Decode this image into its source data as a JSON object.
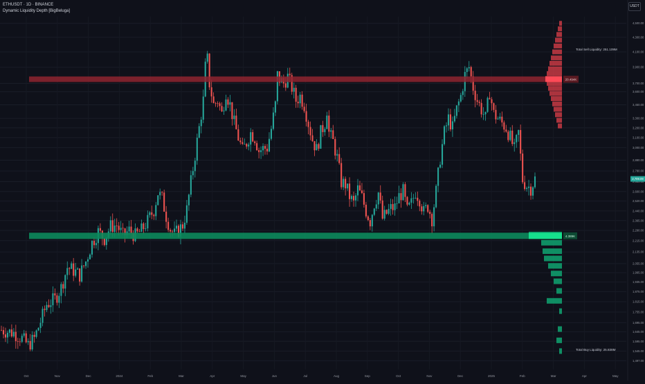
{
  "header": {
    "symbol_line": "ETHUSDT · 1D · BINANCE",
    "indicator_line": "Dynamic Liquidity Depth [BigBeluga]",
    "currency_button": "USDT"
  },
  "colors": {
    "background": "#0f111a",
    "candle_up": "#26a69a",
    "candle_down": "#ef5350",
    "sell_band": "#8e2530",
    "buy_band": "#0c8a5c",
    "sell_profile": "#c73a44",
    "buy_profile": "#0f9c6b",
    "last_price_badge": "#26a69a"
  },
  "chart_data": {
    "type": "candlestick",
    "x_ticks": [
      "Oct",
      "Nov",
      "Dec",
      "2024",
      "Feb",
      "Mar",
      "Apr",
      "May",
      "Jun",
      "Jul",
      "Aug",
      "Sep",
      "Oct",
      "Nov",
      "Dec",
      "2025",
      "Feb",
      "Mar",
      "Apr",
      "May"
    ],
    "y_ticks": [
      1497,
      1545,
      1595,
      1645,
      1695,
      1755,
      1815,
      1875,
      1935,
      1995,
      2055,
      2135,
      2215,
      2290,
      2365,
      2440,
      2520,
      2600,
      2685,
      2780,
      2880,
      3000,
      3100,
      3200,
      3300,
      3450,
      3600,
      3700,
      3900,
      4100,
      4300,
      4500
    ],
    "y_range": [
      1455,
      4600
    ],
    "y_scale": "log",
    "price_path_anchors": [
      [
        0,
        1655
      ],
      [
        6,
        1640
      ],
      [
        10,
        1610
      ],
      [
        13,
        1575
      ],
      [
        16,
        1610
      ],
      [
        18,
        1670
      ],
      [
        22,
        1800
      ],
      [
        26,
        1830
      ],
      [
        29,
        1900
      ],
      [
        32,
        2030
      ],
      [
        35,
        2010
      ],
      [
        38,
        1980
      ],
      [
        41,
        2070
      ],
      [
        44,
        2200
      ],
      [
        47,
        2280
      ],
      [
        50,
        2230
      ],
      [
        53,
        2320
      ],
      [
        56,
        2330
      ],
      [
        59,
        2250
      ],
      [
        62,
        2290
      ],
      [
        65,
        2250
      ],
      [
        68,
        2290
      ],
      [
        71,
        2360
      ],
      [
        74,
        2450
      ],
      [
        76,
        2590
      ],
      [
        78,
        2540
      ],
      [
        80,
        2400
      ],
      [
        82,
        2300
      ],
      [
        84,
        2260
      ],
      [
        86,
        2290
      ],
      [
        88,
        2330
      ],
      [
        90,
        2450
      ],
      [
        92,
        2680
      ],
      [
        94,
        2930
      ],
      [
        96,
        3200
      ],
      [
        98,
        3500
      ],
      [
        99,
        3900
      ],
      [
        100,
        4000
      ],
      [
        101,
        3700
      ],
      [
        103,
        3450
      ],
      [
        105,
        3500
      ],
      [
        107,
        3350
      ],
      [
        109,
        3600
      ],
      [
        111,
        3450
      ],
      [
        113,
        3250
      ],
      [
        115,
        3100
      ],
      [
        117,
        2970
      ],
      [
        119,
        3050
      ],
      [
        121,
        3150
      ],
      [
        123,
        3100
      ],
      [
        125,
        2970
      ],
      [
        127,
        2990
      ],
      [
        129,
        3000
      ],
      [
        131,
        3190
      ],
      [
        133,
        3450
      ],
      [
        134,
        3800
      ],
      [
        135,
        3750
      ],
      [
        137,
        3700
      ],
      [
        139,
        3780
      ],
      [
        141,
        3650
      ],
      [
        143,
        3500
      ],
      [
        145,
        3550
      ],
      [
        147,
        3450
      ],
      [
        149,
        3250
      ],
      [
        151,
        3080
      ],
      [
        153,
        2980
      ],
      [
        155,
        3150
      ],
      [
        157,
        3250
      ],
      [
        158,
        3400
      ],
      [
        159,
        3150
      ],
      [
        161,
        3060
      ],
      [
        163,
        2900
      ],
      [
        165,
        2680
      ],
      [
        167,
        2660
      ],
      [
        169,
        2560
      ],
      [
        171,
        2500
      ],
      [
        173,
        2620
      ],
      [
        175,
        2550
      ],
      [
        177,
        2440
      ],
      [
        179,
        2360
      ],
      [
        181,
        2500
      ],
      [
        183,
        2590
      ],
      [
        185,
        2380
      ],
      [
        187,
        2420
      ],
      [
        189,
        2460
      ],
      [
        191,
        2470
      ],
      [
        193,
        2560
      ],
      [
        195,
        2600
      ],
      [
        197,
        2440
      ],
      [
        199,
        2500
      ],
      [
        201,
        2600
      ],
      [
        203,
        2540
      ],
      [
        205,
        2430
      ],
      [
        207,
        2480
      ],
      [
        209,
        2380
      ],
      [
        211,
        2600
      ],
      [
        213,
        2900
      ],
      [
        215,
        3150
      ],
      [
        217,
        3300
      ],
      [
        219,
        3200
      ],
      [
        221,
        3400
      ],
      [
        223,
        3550
      ],
      [
        225,
        3800
      ],
      [
        227,
        3900
      ],
      [
        229,
        3650
      ],
      [
        231,
        3500
      ],
      [
        233,
        3400
      ],
      [
        235,
        3300
      ],
      [
        237,
        3600
      ],
      [
        239,
        3350
      ],
      [
        241,
        3300
      ],
      [
        243,
        3250
      ],
      [
        245,
        3200
      ],
      [
        247,
        3100
      ],
      [
        249,
        2980
      ],
      [
        251,
        3150
      ],
      [
        253,
        2700
      ],
      [
        255,
        2650
      ],
      [
        257,
        2630
      ],
      [
        259,
        2710
      ]
    ],
    "last_price_label": "2,709.09",
    "sell_level": {
      "price": 3750,
      "label": "20.494K"
    },
    "buy_level": {
      "price": 2250,
      "label": "4.389K"
    },
    "total_sell_label": "Total Sell Liquidity: 251.109M",
    "total_buy_label": "Total Buy Liquidity: 25.838M",
    "sell_profile": [
      [
        4500,
        4
      ],
      [
        4420,
        6
      ],
      [
        4340,
        8
      ],
      [
        4260,
        10
      ],
      [
        4180,
        12
      ],
      [
        4100,
        14
      ],
      [
        4020,
        16
      ],
      [
        3950,
        18
      ],
      [
        3880,
        20
      ],
      [
        3820,
        22
      ],
      [
        3760,
        24
      ],
      [
        3700,
        22
      ],
      [
        3640,
        20
      ],
      [
        3580,
        18
      ],
      [
        3520,
        16
      ],
      [
        3460,
        14
      ],
      [
        3400,
        12
      ],
      [
        3340,
        10
      ],
      [
        3280,
        8
      ],
      [
        3220,
        6
      ]
    ],
    "buy_profile": [
      [
        2260,
        48
      ],
      [
        2200,
        30
      ],
      [
        2140,
        28
      ],
      [
        2090,
        26
      ],
      [
        2040,
        20
      ],
      [
        1990,
        16
      ],
      [
        1940,
        12
      ],
      [
        1880,
        8
      ],
      [
        1820,
        22
      ],
      [
        1760,
        4
      ],
      [
        1660,
        6
      ],
      [
        1600,
        8
      ],
      [
        1545,
        4
      ]
    ]
  }
}
